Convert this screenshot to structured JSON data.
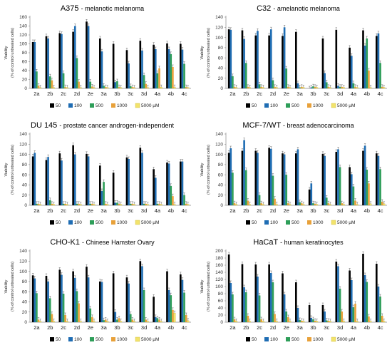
{
  "chart_data": [
    {
      "type": "bar",
      "title": "A375",
      "subtitle": "- melanotic melanoma",
      "ylabel": "Viability\n(% of control untreated cells)",
      "ylim": [
        0,
        160
      ],
      "yticks": [
        0,
        20,
        40,
        60,
        80,
        100,
        120,
        140,
        160
      ],
      "categories": [
        "2a",
        "2b",
        "2c",
        "2d",
        "2e",
        "3a",
        "3b",
        "3c",
        "3d",
        "4a",
        "4b",
        "4c"
      ],
      "series": [
        {
          "name": "50",
          "color": "#000000",
          "values": [
            104,
            117,
            124,
            127,
            150,
            112,
            100,
            86,
            107,
            98,
            101,
            100
          ]
        },
        {
          "name": "100",
          "color": "#1f6db3",
          "values": [
            104,
            112,
            122,
            140,
            140,
            83,
            14,
            56,
            85,
            88,
            88,
            87
          ]
        },
        {
          "name": "500",
          "color": "#2e9e59",
          "values": [
            38,
            27,
            34,
            68,
            15,
            6,
            16,
            5,
            30,
            34,
            77,
            55
          ]
        },
        {
          "name": "1000",
          "color": "#e8a13a",
          "values": [
            6,
            18,
            3,
            15,
            4,
            3,
            3,
            3,
            10,
            45,
            48,
            3
          ]
        },
        {
          "name": "5000 µM",
          "color": "#f2e36b",
          "values": [
            2,
            2,
            2,
            2,
            2,
            2,
            2,
            2,
            2,
            3,
            3,
            2
          ]
        }
      ],
      "legend": "bottom"
    },
    {
      "type": "bar",
      "title": "C32",
      "subtitle": "- amelanotic melanoma",
      "ylabel": "Viability\n(% of control untreated cells)",
      "ylim": [
        0,
        140
      ],
      "yticks": [
        0,
        20,
        40,
        60,
        80,
        100,
        120,
        140
      ],
      "categories": [
        "2a",
        "2b",
        "2c",
        "2d",
        "2e",
        "3a",
        "3b",
        "3c",
        "3d",
        "4a",
        "4b",
        "4c"
      ],
      "series": [
        {
          "name": "50",
          "color": "#000000",
          "values": [
            116,
            114,
            104,
            104,
            103,
            111,
            0,
            98,
            115,
            80,
            114,
            103
          ]
        },
        {
          "name": "100",
          "color": "#1f6db3",
          "values": [
            115,
            97,
            113,
            116,
            120,
            10,
            2,
            30,
            5,
            64,
            84,
            108
          ]
        },
        {
          "name": "500",
          "color": "#2e9e59",
          "values": [
            24,
            50,
            8,
            16,
            39,
            2,
            4,
            12,
            3,
            10,
            98,
            50
          ]
        },
        {
          "name": "1000",
          "color": "#e8a13a",
          "values": [
            3,
            3,
            3,
            3,
            3,
            3,
            3,
            3,
            3,
            3,
            35,
            3
          ]
        },
        {
          "name": "5000 µM",
          "color": "#f2e36b",
          "values": [
            2,
            2,
            2,
            2,
            2,
            2,
            2,
            2,
            2,
            2,
            2,
            2
          ]
        }
      ],
      "legend": "bottom"
    },
    {
      "type": "bar",
      "title": "DU 145",
      "subtitle": "- prostate cancer androgen-independent",
      "ylabel": "Viability\n(% of control untreated cells)",
      "ylim": [
        0,
        140
      ],
      "yticks": [
        0,
        20,
        40,
        60,
        80,
        100,
        120,
        140
      ],
      "categories": [
        "2a",
        "2b",
        "2c",
        "2d",
        "2e",
        "3a",
        "3b",
        "3c",
        "3d",
        "4a",
        "4b",
        "4c"
      ],
      "series": [
        {
          "name": "50",
          "color": "#000000",
          "values": [
            96,
            89,
            102,
            118,
            101,
            78,
            64,
            94,
            113,
            71,
            84,
            86
          ]
        },
        {
          "name": "100",
          "color": "#1f6db3",
          "values": [
            103,
            95,
            88,
            100,
            96,
            28,
            5,
            91,
            103,
            54,
            82,
            86
          ]
        },
        {
          "name": "500",
          "color": "#2e9e59",
          "values": [
            3,
            10,
            3,
            3,
            3,
            46,
            5,
            3,
            3,
            3,
            38,
            20
          ]
        },
        {
          "name": "1000",
          "color": "#e8a13a",
          "values": [
            3,
            3,
            3,
            3,
            3,
            3,
            3,
            3,
            3,
            3,
            18,
            3
          ]
        },
        {
          "name": "5000 µM",
          "color": "#f2e36b",
          "values": [
            2,
            2,
            2,
            2,
            2,
            2,
            2,
            2,
            2,
            2,
            2,
            2
          ]
        }
      ],
      "legend": "bottom"
    },
    {
      "type": "bar",
      "title": "MCF-7/WT",
      "subtitle": "- breast adenocarcinoma",
      "ylabel": "Viability\n(% of control untreated cells)",
      "ylim": [
        0,
        140
      ],
      "yticks": [
        0,
        20,
        40,
        60,
        80,
        100,
        120,
        140
      ],
      "categories": [
        "2a",
        "2b",
        "2c",
        "2d",
        "2e",
        "3a",
        "3b",
        "3c",
        "3d",
        "4a",
        "4b",
        "4c"
      ],
      "series": [
        {
          "name": "50",
          "color": "#000000",
          "values": [
            103,
            107,
            107,
            113,
            102,
            102,
            31,
            101,
            105,
            75,
            107,
            102
          ]
        },
        {
          "name": "100",
          "color": "#1f6db3",
          "values": [
            112,
            128,
            103,
            111,
            100,
            110,
            43,
            97,
            110,
            61,
            117,
            97
          ]
        },
        {
          "name": "500",
          "color": "#2e9e59",
          "values": [
            64,
            69,
            20,
            58,
            60,
            6,
            4,
            15,
            75,
            37,
            70,
            71
          ]
        },
        {
          "name": "1000",
          "color": "#e8a13a",
          "values": [
            4,
            9,
            4,
            13,
            4,
            4,
            3,
            4,
            4,
            9,
            43,
            7
          ]
        },
        {
          "name": "5000 µM",
          "color": "#f2e36b",
          "values": [
            2,
            2,
            2,
            2,
            2,
            2,
            2,
            2,
            2,
            2,
            3,
            3
          ]
        }
      ],
      "legend": "bottom"
    },
    {
      "type": "bar",
      "title": "CHO-K1",
      "subtitle": "- Chinese Hamster Ovary",
      "ylabel": "Viability\n(% of control untreated cells)",
      "ylim": [
        0,
        140
      ],
      "yticks": [
        0,
        20,
        40,
        60,
        80,
        100,
        120,
        140
      ],
      "categories": [
        "2a",
        "2b",
        "2c",
        "2d",
        "2e",
        "3a",
        "3b",
        "3c",
        "3d",
        "4a",
        "4b",
        "4c"
      ],
      "series": [
        {
          "name": "50",
          "color": "#000000",
          "values": [
            92,
            91,
            103,
            100,
            109,
            80,
            96,
            88,
            120,
            50,
            100,
            94
          ]
        },
        {
          "name": "100",
          "color": "#1f6db3",
          "values": [
            86,
            80,
            93,
            87,
            88,
            79,
            20,
            76,
            110,
            10,
            63,
            83
          ]
        },
        {
          "name": "500",
          "color": "#2e9e59",
          "values": [
            57,
            47,
            56,
            61,
            27,
            4,
            5,
            16,
            63,
            8,
            53,
            58
          ]
        },
        {
          "name": "1000",
          "color": "#e8a13a",
          "values": [
            5,
            16,
            14,
            37,
            10,
            5,
            8,
            5,
            5,
            5,
            24,
            14
          ]
        },
        {
          "name": "5000 µM",
          "color": "#f2e36b",
          "values": [
            2,
            2,
            2,
            2,
            2,
            2,
            2,
            2,
            2,
            2,
            18,
            3
          ]
        }
      ],
      "legend": "bottom"
    },
    {
      "type": "bar",
      "title": "HaCaT",
      "subtitle": "- human keratinocytes",
      "ylabel": "Viability\n(% of control untreated cells)",
      "ylim": [
        0,
        200
      ],
      "yticks": [
        0,
        20,
        40,
        60,
        80,
        100,
        120,
        140,
        160,
        180,
        200
      ],
      "categories": [
        "2a",
        "2b",
        "2c",
        "2d",
        "2e",
        "3a",
        "3b",
        "3c",
        "3d",
        "4a",
        "4b",
        "4c"
      ],
      "series": [
        {
          "name": "50",
          "color": "#000000",
          "values": [
            190,
            163,
            162,
            162,
            137,
            112,
            48,
            48,
            170,
            145,
            192,
            164
          ]
        },
        {
          "name": "100",
          "color": "#1f6db3",
          "values": [
            110,
            98,
            128,
            138,
            78,
            40,
            12,
            30,
            157,
            118,
            132,
            100
          ]
        },
        {
          "name": "500",
          "color": "#2e9e59",
          "values": [
            78,
            84,
            75,
            112,
            30,
            6,
            8,
            5,
            94,
            42,
            113,
            72
          ]
        },
        {
          "name": "1000",
          "color": "#e8a13a",
          "values": [
            8,
            18,
            8,
            23,
            14,
            4,
            4,
            4,
            30,
            52,
            16,
            18
          ]
        },
        {
          "name": "5000 µM",
          "color": "#f2e36b",
          "values": [
            3,
            3,
            3,
            3,
            3,
            3,
            3,
            3,
            3,
            3,
            3,
            3
          ]
        }
      ],
      "legend": "bottom"
    }
  ]
}
